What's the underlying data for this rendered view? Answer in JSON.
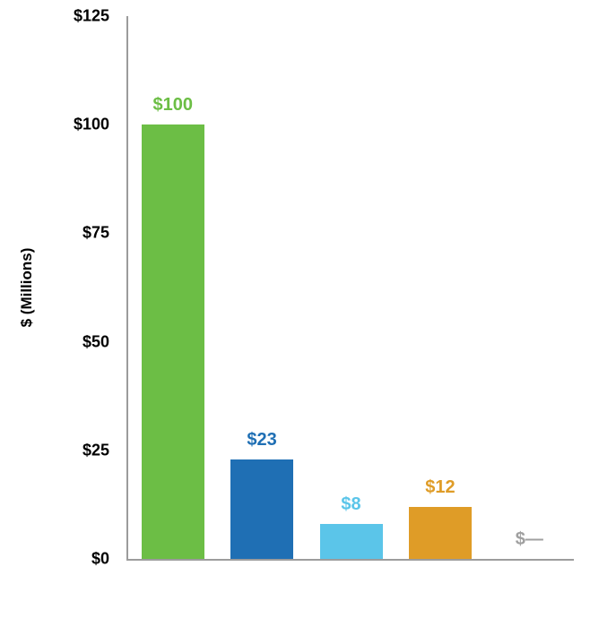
{
  "chart_data": {
    "type": "bar",
    "categories": [
      "",
      "",
      "",
      "",
      ""
    ],
    "values": [
      100,
      23,
      8,
      12,
      0
    ],
    "bar_labels": [
      "$100",
      "$23",
      "$8",
      "$12",
      "$—"
    ],
    "bar_colors": [
      "#6CBE45",
      "#1F6FB4",
      "#5BC5E9",
      "#DF9C27",
      "#A0A0A0"
    ],
    "title": "",
    "xlabel": "",
    "ylabel": "$ (Millions)",
    "ylim": [
      0,
      125
    ],
    "ytick_labels": [
      "$0",
      "$25",
      "$50",
      "$75",
      "$100",
      "$125"
    ],
    "ytick_values": [
      0,
      25,
      50,
      75,
      100,
      125
    ],
    "grid": false,
    "legend": "none"
  },
  "colors": {
    "axis": "#9c9c9c",
    "tick_text": "#000000",
    "background": "#FFFFFF"
  }
}
